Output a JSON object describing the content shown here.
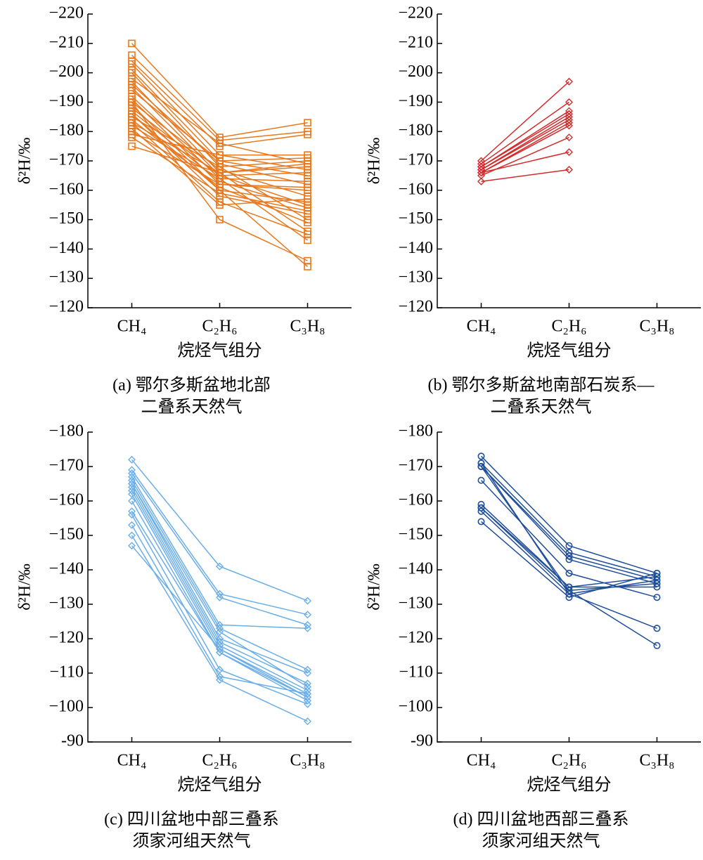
{
  "chart_data": [
    {
      "type": "line",
      "marker": "square",
      "color": "#e8781e",
      "categories": [
        "CH₄",
        "C₂H₆",
        "C₃H₈"
      ],
      "ylabel": "δ²H/‰",
      "xlabel": "烷烃气组分",
      "caption": [
        "(a) 鄂尔多斯盆地北部",
        "二叠系天然气"
      ],
      "ylim": [
        -120,
        -220
      ],
      "yticks": [
        {
          "value": -220,
          "label": "−220"
        },
        {
          "value": -210,
          "label": "−210"
        },
        {
          "value": -200,
          "label": "−200"
        },
        {
          "value": -190,
          "label": "−190"
        },
        {
          "value": -180,
          "label": "−180"
        },
        {
          "value": -170,
          "label": "−170"
        },
        {
          "value": -160,
          "label": "−160"
        },
        {
          "value": -150,
          "label": "−150"
        },
        {
          "value": -140,
          "label": "−140"
        },
        {
          "value": -130,
          "label": "−130"
        },
        {
          "value": -120,
          "label": "−120"
        }
      ],
      "series": [
        {
          "values": [
            -210,
            -178,
            -183
          ]
        },
        {
          "values": [
            -206,
            -177,
            -180
          ]
        },
        {
          "values": [
            -204,
            -175,
            -179
          ]
        },
        {
          "values": [
            -203,
            -172,
            -172
          ]
        },
        {
          "values": [
            -201,
            -170,
            -171
          ]
        },
        {
          "values": [
            -200,
            -168,
            -170
          ]
        },
        {
          "values": [
            -198,
            -176,
            -169
          ]
        },
        {
          "values": [
            -197,
            -166,
            -168
          ]
        },
        {
          "values": [
            -195,
            -165,
            -166
          ]
        },
        {
          "values": [
            -194,
            -170,
            -165
          ]
        },
        {
          "values": [
            -192,
            -164,
            -163
          ]
        },
        {
          "values": [
            -191,
            -162,
            -160
          ]
        },
        {
          "values": [
            -190,
            -167,
            -158
          ]
        },
        {
          "values": [
            -189,
            -160,
            -156
          ]
        },
        {
          "values": [
            -188,
            -165,
            -155
          ]
        },
        {
          "values": [
            -187,
            -163,
            -154
          ]
        },
        {
          "values": [
            -186,
            -158,
            -152
          ]
        },
        {
          "values": [
            -185,
            -168,
            -150
          ]
        },
        {
          "values": [
            -184,
            -161,
            -149
          ]
        },
        {
          "values": [
            -183,
            -166,
            -146
          ]
        },
        {
          "values": [
            -183,
            -156,
            -145
          ]
        },
        {
          "values": [
            -182,
            -164,
            -143
          ]
        },
        {
          "values": [
            -181,
            -155,
            -157
          ]
        },
        {
          "values": [
            -180,
            -162,
            -161
          ]
        },
        {
          "values": [
            -179,
            -172,
            -167
          ]
        },
        {
          "values": [
            -178,
            -159,
            -153
          ]
        },
        {
          "values": [
            -190,
            -150,
            -136
          ]
        },
        {
          "values": [
            -186,
            -160,
            -134
          ]
        },
        {
          "values": [
            -175,
            -166,
            -169
          ]
        },
        {
          "values": [
            -196,
            -169,
            -162
          ]
        }
      ]
    },
    {
      "type": "line",
      "marker": "diamond",
      "color": "#d42a2a",
      "categories": [
        "CH₄",
        "C₂H₆",
        "C₃H₈"
      ],
      "ylabel": "δ²H/‰",
      "xlabel": "烷烃气组分",
      "caption": [
        "(b) 鄂尔多斯盆地南部石炭系—",
        "二叠系天然气"
      ],
      "ylim": [
        -120,
        -220
      ],
      "yticks": [
        {
          "value": -220,
          "label": "−220"
        },
        {
          "value": -210,
          "label": "−210"
        },
        {
          "value": -200,
          "label": "−200"
        },
        {
          "value": -190,
          "label": "−190"
        },
        {
          "value": -180,
          "label": "−180"
        },
        {
          "value": -170,
          "label": "−170"
        },
        {
          "value": -160,
          "label": "−160"
        },
        {
          "value": -150,
          "label": "−150"
        },
        {
          "value": -140,
          "label": "−140"
        },
        {
          "value": -130,
          "label": "−130"
        },
        {
          "value": -120,
          "label": "−120"
        }
      ],
      "series": [
        {
          "values": [
            -170,
            -197,
            null
          ]
        },
        {
          "values": [
            -169,
            -190,
            null
          ]
        },
        {
          "values": [
            -168,
            -187,
            null
          ]
        },
        {
          "values": [
            -168,
            -186,
            null
          ]
        },
        {
          "values": [
            -167,
            -185,
            null
          ]
        },
        {
          "values": [
            -167,
            -184,
            null
          ]
        },
        {
          "values": [
            -166,
            -183,
            null
          ]
        },
        {
          "values": [
            -166,
            -182,
            null
          ]
        },
        {
          "values": [
            -165,
            -178,
            null
          ]
        },
        {
          "values": [
            -166,
            -173,
            null
          ]
        },
        {
          "values": [
            -163,
            -167,
            null
          ]
        }
      ]
    },
    {
      "type": "line",
      "marker": "diamond",
      "color": "#6aaee8",
      "categories": [
        "CH₄",
        "C₂H₆",
        "C₃H₈"
      ],
      "ylabel": "δ²H/‰",
      "xlabel": "烷烃气组分",
      "caption": [
        "(c) 四川盆地中部三叠系",
        "须家河组天然气"
      ],
      "ylim": [
        -90,
        -180
      ],
      "yticks": [
        {
          "value": -180,
          "label": "−180"
        },
        {
          "value": -170,
          "label": "−170"
        },
        {
          "value": -160,
          "label": "−160"
        },
        {
          "value": -150,
          "label": "−150"
        },
        {
          "value": -140,
          "label": "−140"
        },
        {
          "value": -130,
          "label": "−130"
        },
        {
          "value": -120,
          "label": "−120"
        },
        {
          "value": -110,
          "label": "−110"
        },
        {
          "value": -100,
          "label": "−100"
        },
        {
          "value": -90,
          "label": "-90"
        }
      ],
      "series": [
        {
          "values": [
            -172,
            -141,
            -131
          ]
        },
        {
          "values": [
            -169,
            -133,
            -127
          ]
        },
        {
          "values": [
            -168,
            -132,
            -124
          ]
        },
        {
          "values": [
            -167,
            -124,
            -123
          ]
        },
        {
          "values": [
            -166,
            -123,
            -111
          ]
        },
        {
          "values": [
            -165,
            -120,
            -110
          ]
        },
        {
          "values": [
            -164,
            -119,
            -107
          ]
        },
        {
          "values": [
            -163,
            -118,
            -105
          ]
        },
        {
          "values": [
            -162,
            -117,
            -104
          ]
        },
        {
          "values": [
            -160,
            -116,
            -103
          ]
        },
        {
          "values": [
            -157,
            -116,
            -102
          ]
        },
        {
          "values": [
            -156,
            -111,
            -101
          ]
        },
        {
          "values": [
            -153,
            -109,
            -104
          ]
        },
        {
          "values": [
            -150,
            -108,
            -96
          ]
        },
        {
          "values": [
            -147,
            -117,
            -103
          ]
        },
        {
          "values": [
            -165,
            -122,
            -106
          ]
        }
      ]
    },
    {
      "type": "line",
      "marker": "circle",
      "color": "#1f4e9a",
      "categories": [
        "CH₄",
        "C₂H₆",
        "C₃H₈"
      ],
      "ylabel": "δ²H/‰",
      "xlabel": "烷烃气组分",
      "caption": [
        "(d) 四川盆地西部三叠系",
        "须家河组天然气"
      ],
      "ylim": [
        -90,
        -180
      ],
      "yticks": [
        {
          "value": -180,
          "label": "−180"
        },
        {
          "value": -170,
          "label": "−170"
        },
        {
          "value": -160,
          "label": "−160"
        },
        {
          "value": -150,
          "label": "−150"
        },
        {
          "value": -140,
          "label": "−140"
        },
        {
          "value": -130,
          "label": "−130"
        },
        {
          "value": -120,
          "label": "−120"
        },
        {
          "value": -110,
          "label": "−110"
        },
        {
          "value": -100,
          "label": "−100"
        },
        {
          "value": -90,
          "label": "-90"
        }
      ],
      "series": [
        {
          "values": [
            -173,
            -147,
            -139
          ]
        },
        {
          "values": [
            -171,
            -145,
            -138
          ]
        },
        {
          "values": [
            -170,
            -144,
            -137
          ]
        },
        {
          "values": [
            -170,
            -143,
            -136
          ]
        },
        {
          "values": [
            -166,
            -139,
            -132
          ]
        },
        {
          "values": [
            -159,
            -135,
            -135
          ]
        },
        {
          "values": [
            -158,
            -134,
            -136
          ]
        },
        {
          "values": [
            -157,
            -133,
            -137
          ]
        },
        {
          "values": [
            -154,
            -132,
            -139
          ]
        },
        {
          "values": [
            -171,
            -133,
            -123
          ]
        },
        {
          "values": [
            -170,
            -134,
            -118
          ]
        },
        {
          "values": [
            -158,
            -135,
            -138
          ]
        }
      ]
    }
  ]
}
